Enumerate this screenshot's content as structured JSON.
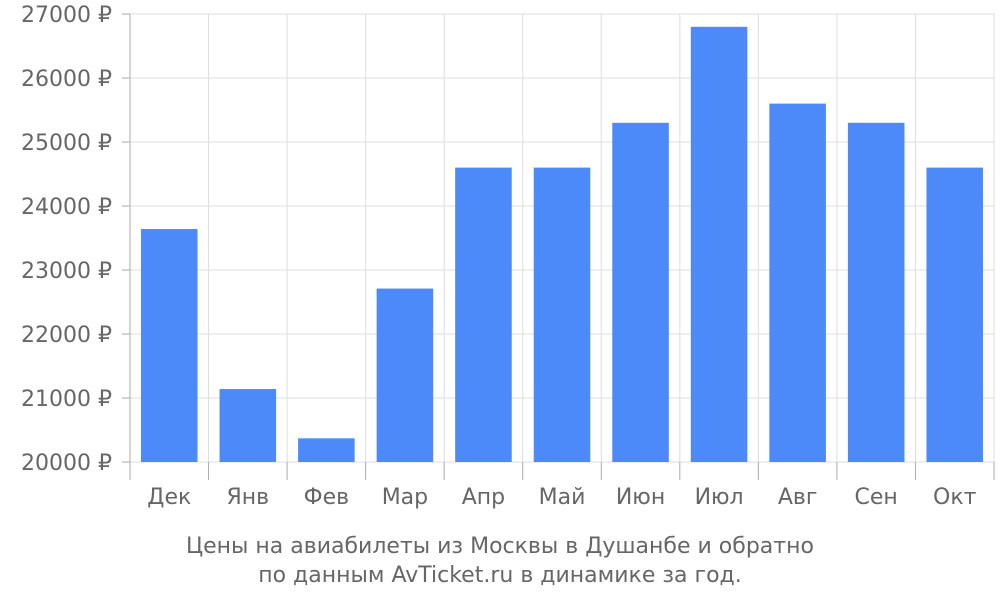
{
  "chart_data": {
    "type": "bar",
    "categories": [
      "Дек",
      "Янв",
      "Фев",
      "Мар",
      "Апр",
      "Май",
      "Июн",
      "Июл",
      "Авг",
      "Сен",
      "Окт"
    ],
    "values": [
      23640,
      21140,
      20370,
      22710,
      24600,
      24600,
      25300,
      26800,
      25600,
      25300,
      24600
    ],
    "ylim": [
      20000,
      27000
    ],
    "yticks": [
      20000,
      21000,
      22000,
      23000,
      24000,
      25000,
      26000,
      27000
    ],
    "ytick_labels": [
      "20000 ₽",
      "21000 ₽",
      "22000 ₽",
      "23000 ₽",
      "24000 ₽",
      "25000 ₽",
      "26000 ₽",
      "27000 ₽"
    ],
    "grid": true,
    "bar_color": "#4d8af9",
    "caption_line1": "Цены на авиабилеты из Москвы в Душанбе и обратно",
    "caption_line2": "по данным AvTicket.ru в динамике за год."
  }
}
